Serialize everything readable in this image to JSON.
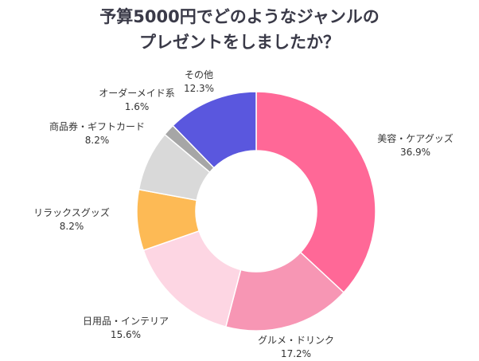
{
  "chart_data": {
    "type": "pie",
    "donut": true,
    "title_lines": [
      "予算5000円でどのようなジャンルの",
      "プレゼントをしましたか？"
    ],
    "unit": "%",
    "start": "top",
    "direction": "clockwise",
    "slices": [
      {
        "label": "美容・ケアグッズ",
        "value": 36.9,
        "value_label": "36.9%",
        "color": "#FF6897"
      },
      {
        "label": "グルメ・ドリンク",
        "value": 17.2,
        "value_label": "17.2%",
        "color": "#F796B4"
      },
      {
        "label": "日用品・インテリア",
        "value": 15.6,
        "value_label": "15.6%",
        "color": "#FDD6E3"
      },
      {
        "label": "リラックスグッズ",
        "value": 8.2,
        "value_label": "8.2%",
        "color": "#FDBA55"
      },
      {
        "label": "商品券・ギフトカード",
        "value": 8.2,
        "value_label": "8.2%",
        "color": "#D9D9D9"
      },
      {
        "label": "オーダーメイド系",
        "value": 1.6,
        "value_label": "1.6%",
        "color": "#A6A6A6"
      },
      {
        "label": "その他",
        "value": 12.3,
        "value_label": "12.3%",
        "color": "#5A57DE"
      }
    ]
  }
}
